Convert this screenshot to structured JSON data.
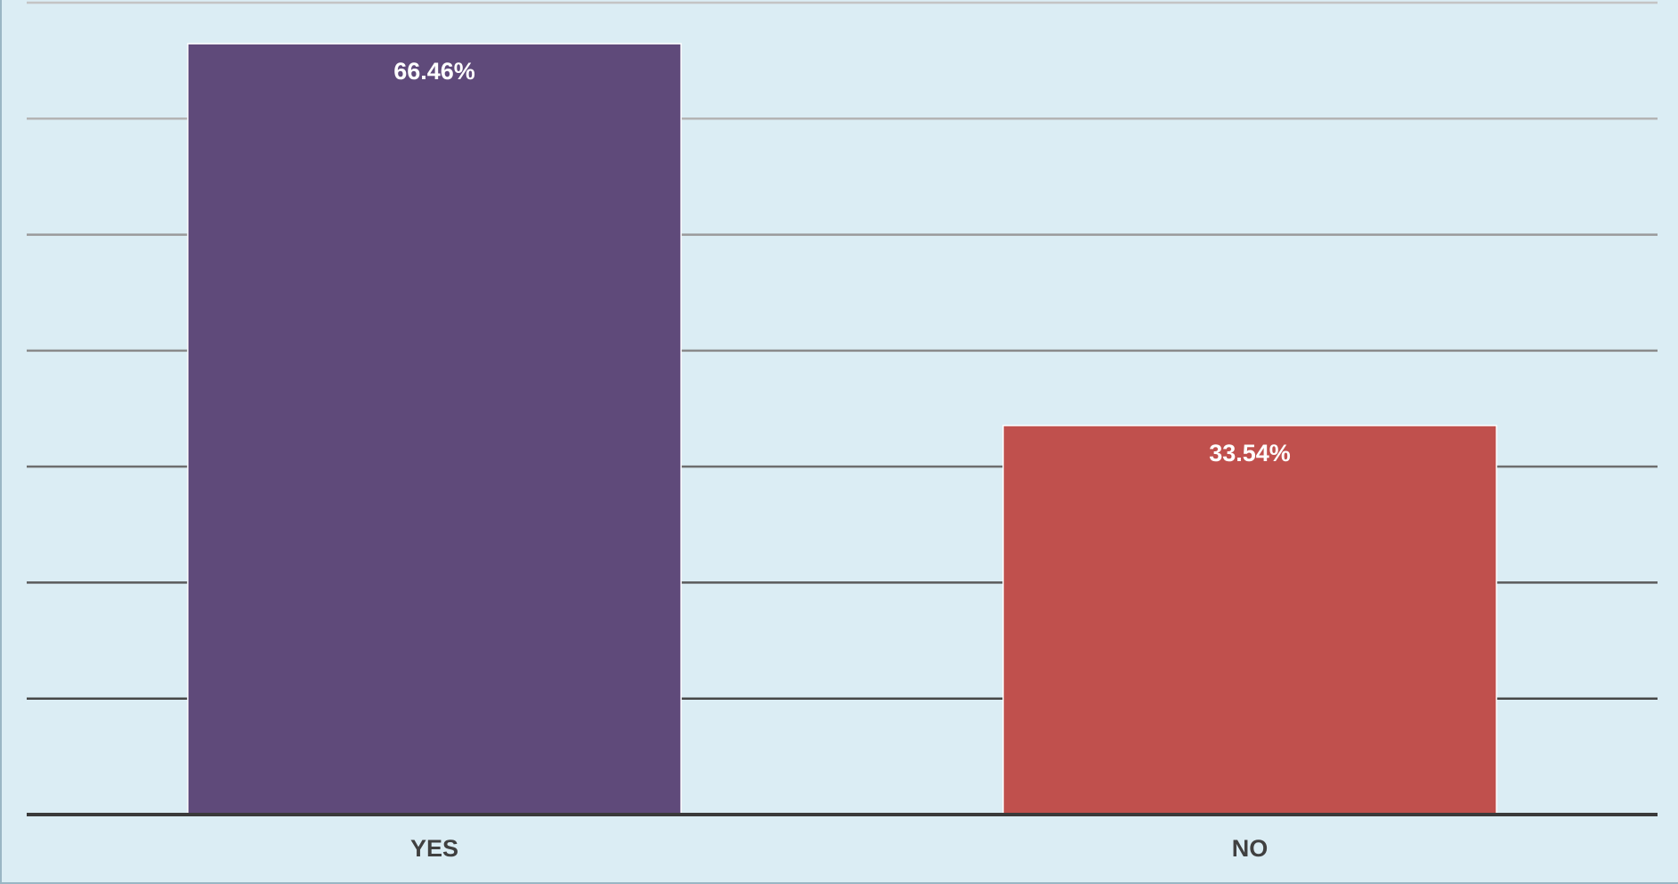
{
  "chart_data": {
    "type": "bar",
    "categories": [
      "YES",
      "NO"
    ],
    "values": [
      66.46,
      33.54
    ],
    "data_labels": [
      "66.46%",
      "33.54%"
    ],
    "colors": [
      "#5f4a7a",
      "#c0504d"
    ],
    "ylim": [
      0,
      70
    ],
    "grid": true,
    "legend": "none",
    "title": "",
    "xlabel": "",
    "ylabel": ""
  }
}
